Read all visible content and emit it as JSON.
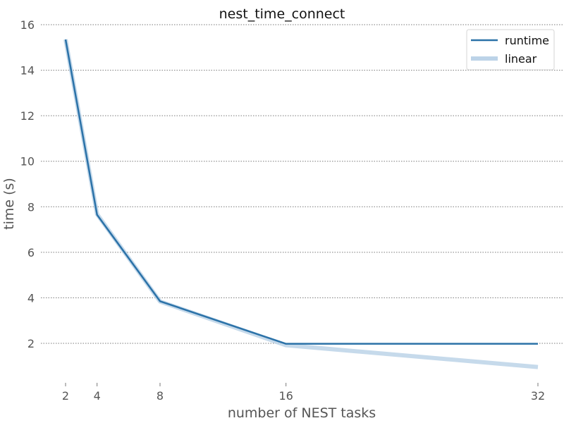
{
  "chart_data": {
    "type": "line",
    "title": "nest_time_connect",
    "xlabel": "number of NEST tasks",
    "ylabel": "time (s)",
    "x": [
      2,
      4,
      8,
      16,
      32
    ],
    "x_ticks": [
      2,
      4,
      8,
      16,
      32
    ],
    "y_ticks": [
      2,
      4,
      6,
      8,
      10,
      12,
      14,
      16
    ],
    "xlim": [
      1,
      33
    ],
    "ylim": [
      0.4,
      16
    ],
    "grid": "y-dotted",
    "legend_position": "top-right",
    "series": [
      {
        "name": "runtime",
        "values": [
          15.35,
          7.65,
          3.85,
          1.98,
          1.98
        ],
        "color": "#2b72a8"
      },
      {
        "name": "linear",
        "values": [
          15.35,
          7.675,
          3.8375,
          1.91875,
          0.959375
        ],
        "color": "#bcd3e8"
      }
    ]
  }
}
